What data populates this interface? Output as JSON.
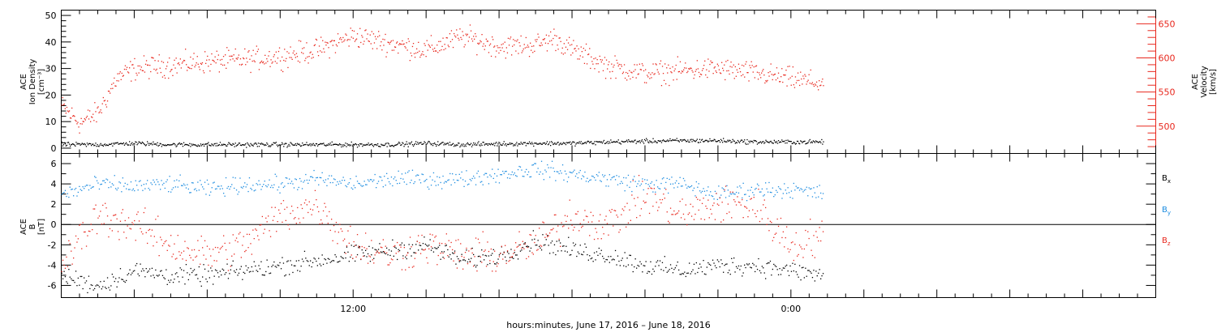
{
  "figure": {
    "x_axis_title": "hours:minutes, June 17, 2016 – June 18, 2016"
  },
  "chart_data": [
    {
      "type": "scatter",
      "panel": "top",
      "ylabel_left": [
        "ACE",
        "Ion Density",
        "[cm⁻³]"
      ],
      "ylabel_right": [
        "ACE",
        "Velocity",
        "[km/s]"
      ],
      "left_axis": {
        "ylim": [
          -2,
          52
        ],
        "ticks": [
          0,
          10,
          20,
          30,
          40,
          50
        ],
        "tick_labels": [
          "0",
          "10",
          "20",
          "30",
          "40",
          "50"
        ]
      },
      "right_axis": {
        "ylim": [
          460,
          670
        ],
        "ticks": [
          500,
          550,
          600,
          650
        ],
        "tick_labels": [
          "500",
          "550",
          "600",
          "650"
        ],
        "color": "#e8281e"
      },
      "xlim_hours": [
        -8,
        22
      ],
      "data_end_hour": 12.9,
      "series": [
        {
          "axis": "left",
          "color": "#000000",
          "x": [
            -8,
            -7,
            -6,
            -5,
            -4,
            -3,
            -2,
            -1,
            0,
            1,
            2,
            3,
            4,
            5,
            6,
            7,
            8,
            9,
            10,
            11,
            12,
            12.9
          ],
          "y": [
            1.5,
            1.5,
            2,
            1.5,
            1.5,
            1.5,
            1.5,
            1.5,
            1.5,
            1.5,
            2,
            1.5,
            1.8,
            2,
            2,
            2.5,
            2.8,
            3,
            3,
            2.5,
            2.5,
            2.5
          ]
        },
        {
          "axis": "right",
          "color": "#e8281e",
          "x": [
            -8,
            -7.5,
            -7,
            -6.5,
            -6,
            -5,
            -4,
            -3,
            -2,
            -1,
            0,
            1,
            2,
            3,
            4,
            5,
            5.5,
            6,
            7,
            8,
            9,
            10,
            11,
            12,
            12.9
          ],
          "y": [
            530,
            505,
            520,
            570,
            585,
            590,
            595,
            598,
            603,
            612,
            633,
            622,
            612,
            632,
            617,
            620,
            630,
            612,
            588,
            578,
            582,
            585,
            578,
            570,
            563
          ]
        }
      ]
    },
    {
      "type": "scatter",
      "panel": "bottom",
      "ylabel_left": [
        "ACE",
        "B",
        "[nT]"
      ],
      "axis": {
        "ylim": [
          -7.2,
          7
        ],
        "ticks": [
          -6,
          -4,
          -2,
          0,
          2,
          4,
          6
        ],
        "tick_labels": [
          "-6",
          "-4",
          "-2",
          "0",
          "2",
          "4",
          "6"
        ]
      },
      "xlim_hours": [
        -8,
        22
      ],
      "data_end_hour": 12.9,
      "zero_line": true,
      "legend_position": "right",
      "series": [
        {
          "name": "Bx",
          "color": "#000000",
          "x": [
            -8,
            -7,
            -6,
            -5,
            -4,
            -3,
            -2,
            -1,
            0,
            1,
            2,
            3,
            4,
            5,
            6,
            7,
            8,
            9,
            10,
            11,
            12,
            12.9
          ],
          "y": [
            -5,
            -6,
            -4.5,
            -5,
            -5,
            -4.5,
            -4,
            -3.5,
            -3,
            -2.5,
            -2,
            -3.5,
            -3,
            -1.5,
            -2.5,
            -3,
            -4,
            -4.5,
            -4,
            -4,
            -4.5,
            -5
          ]
        },
        {
          "name": "By",
          "color": "#1c8ce0",
          "x": [
            -8,
            -7,
            -6,
            -5,
            -4,
            -3,
            -2,
            -1,
            0,
            1,
            2,
            3,
            4,
            5,
            6,
            7,
            8,
            9,
            10,
            11,
            12,
            12.9
          ],
          "y": [
            3,
            4,
            3.8,
            4,
            3.5,
            4,
            4,
            4.5,
            4,
            4.5,
            4.5,
            4.5,
            5,
            5.5,
            5,
            4.5,
            4,
            4,
            3,
            3.5,
            3.5,
            3
          ]
        },
        {
          "name": "Bz",
          "color": "#e8281e",
          "x": [
            -8,
            -7,
            -6,
            -5,
            -4,
            -3,
            -2,
            -1,
            0,
            1,
            2,
            3,
            4,
            5,
            6,
            7,
            8,
            9,
            10,
            11,
            12,
            12.9
          ],
          "y": [
            -4,
            1,
            0,
            -2,
            -3,
            -2,
            1,
            2,
            -2,
            -3,
            -2,
            -3,
            -3,
            -2,
            1,
            0,
            3,
            1,
            2,
            2,
            -2,
            -1
          ]
        }
      ]
    }
  ],
  "x_axis": {
    "tick_labels": [
      {
        "hour": 0,
        "label": "12:00"
      },
      {
        "hour": 12,
        "label": "0:00"
      }
    ],
    "major_step_hours": 2,
    "minor_step_hours": 0.5
  },
  "legend": {
    "items": [
      {
        "name": "Bx",
        "base": "B",
        "sub": "x",
        "color": "#000000"
      },
      {
        "name": "By",
        "base": "B",
        "sub": "y",
        "color": "#1c8ce0"
      },
      {
        "name": "Bz",
        "base": "B",
        "sub": "z",
        "color": "#e8281e"
      }
    ]
  }
}
